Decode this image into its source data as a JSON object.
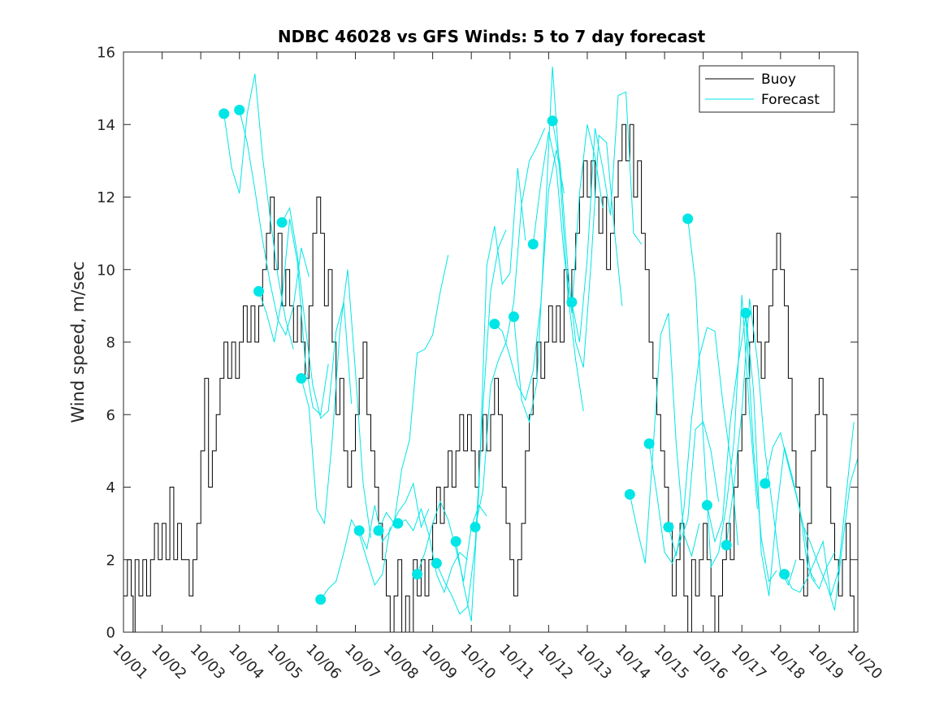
{
  "chart_data": {
    "type": "line",
    "title": "NDBC 46028 vs GFS Winds: 5 to 7 day forecast",
    "xlabel": "",
    "ylabel": "Wind speed, m/sec",
    "xlim": [
      0,
      19
    ],
    "ylim": [
      0,
      16
    ],
    "yticks": [
      0,
      2,
      4,
      6,
      8,
      10,
      12,
      14,
      16
    ],
    "xticks": [
      0,
      1,
      2,
      3,
      4,
      5,
      6,
      7,
      8,
      9,
      10,
      11,
      12,
      13,
      14,
      15,
      16,
      17,
      18,
      19
    ],
    "xtick_labels": [
      "10/01",
      "10/02",
      "10/03",
      "10/04",
      "10/05",
      "10/06",
      "10/07",
      "10/08",
      "10/09",
      "10/10",
      "10/11",
      "10/12",
      "10/13",
      "10/14",
      "10/15",
      "10/16",
      "10/17",
      "10/18",
      "10/19",
      "10/20"
    ],
    "legend": {
      "location": "top-right",
      "entries": [
        "Buoy",
        "Forecast"
      ]
    },
    "colors": {
      "buoy": "#000000",
      "forecast": "#00e5e5",
      "markers": "#00e5e5"
    },
    "buoy": {
      "name": "Buoy",
      "x": [
        0,
        0.1,
        0.2,
        0.25,
        0.3,
        0.4,
        0.5,
        0.6,
        0.7,
        0.8,
        0.9,
        1.0,
        1.1,
        1.2,
        1.3,
        1.4,
        1.5,
        1.6,
        1.7,
        1.8,
        1.9,
        2.0,
        2.1,
        2.2,
        2.3,
        2.4,
        2.5,
        2.6,
        2.7,
        2.8,
        2.9,
        3.0,
        3.1,
        3.2,
        3.3,
        3.4,
        3.5,
        3.6,
        3.7,
        3.8,
        3.9,
        4.0,
        4.1,
        4.2,
        4.3,
        4.4,
        4.5,
        4.6,
        4.7,
        4.8,
        4.9,
        5.0,
        5.1,
        5.2,
        5.3,
        5.4,
        5.5,
        5.6,
        5.7,
        5.8,
        5.9,
        6.0,
        6.1,
        6.2,
        6.3,
        6.4,
        6.5,
        6.6,
        6.7,
        6.8,
        6.9,
        7.0,
        7.1,
        7.2,
        7.3,
        7.4,
        7.5,
        7.6,
        7.7,
        7.8,
        7.9,
        8.0,
        8.1,
        8.2,
        8.3,
        8.4,
        8.5,
        8.6,
        8.7,
        8.8,
        8.9,
        9.0,
        9.1,
        9.2,
        9.3,
        9.4,
        9.5,
        9.6,
        9.7,
        9.8,
        9.9,
        10.0,
        10.1,
        10.2,
        10.3,
        10.4,
        10.5,
        10.6,
        10.7,
        10.8,
        10.9,
        11.0,
        11.1,
        11.2,
        11.3,
        11.4,
        11.5,
        11.6,
        11.7,
        11.8,
        11.9,
        12.0,
        12.1,
        12.2,
        12.3,
        12.4,
        12.5,
        12.6,
        12.7,
        12.8,
        12.9,
        13.0,
        13.1,
        13.2,
        13.3,
        13.4,
        13.5,
        13.6,
        13.7,
        13.8,
        13.9,
        14.0,
        14.1,
        14.2,
        14.3,
        14.4,
        14.5,
        14.6,
        14.7,
        14.8,
        14.9,
        15.0,
        15.1,
        15.2,
        15.3,
        15.4,
        15.5,
        15.6,
        15.7,
        15.8,
        15.9,
        16.0,
        16.1,
        16.2,
        16.3,
        16.4,
        16.5,
        16.6,
        16.7,
        16.8,
        16.9,
        17.0,
        17.1,
        17.2,
        17.3,
        17.4,
        17.5,
        17.6,
        17.7,
        17.8,
        17.9,
        18.0,
        18.1,
        18.2,
        18.3,
        18.4,
        18.5,
        18.6,
        18.7,
        18.8,
        18.9,
        19.0
      ],
      "values": [
        1,
        2,
        1,
        0,
        2,
        1,
        2,
        1,
        2,
        3,
        2,
        3,
        2,
        4,
        2,
        3,
        2,
        2,
        1,
        2,
        3,
        5,
        7,
        4,
        5,
        6,
        7,
        8,
        7,
        8,
        7,
        8,
        9,
        8,
        9,
        8,
        9,
        10,
        11,
        12,
        10,
        11,
        9,
        10,
        9,
        8,
        9,
        8,
        7,
        9,
        11,
        12,
        11,
        9,
        10,
        8,
        6,
        7,
        5,
        4,
        5,
        6,
        7,
        8,
        6,
        5,
        4,
        3,
        2,
        1,
        0,
        1,
        2,
        0,
        1,
        0,
        2,
        1,
        2,
        1,
        2,
        3,
        4,
        3,
        4,
        5,
        4,
        5,
        6,
        5,
        6,
        5,
        4,
        5,
        6,
        5,
        6,
        7,
        6,
        4,
        3,
        2,
        1,
        2,
        3,
        5,
        6,
        7,
        8,
        7,
        8,
        9,
        8,
        9,
        8,
        10,
        9,
        10,
        11,
        12,
        13,
        12,
        13,
        12,
        11,
        12,
        10,
        11,
        12,
        13,
        14,
        13,
        14,
        12,
        13,
        11,
        10,
        8,
        7,
        6,
        5,
        4,
        3,
        1,
        2,
        3,
        1,
        0,
        2,
        1,
        2,
        3,
        2,
        1,
        0,
        1,
        2,
        3,
        2,
        4,
        5,
        6,
        7,
        8,
        9,
        8,
        7,
        8,
        9,
        10,
        11,
        10,
        9,
        7,
        5,
        4,
        2,
        1,
        3,
        5,
        6,
        7,
        6,
        4,
        3,
        2,
        1,
        2,
        3,
        1,
        0,
        2
      ]
    },
    "forecast": {
      "name": "Forecast",
      "series": [
        {
          "x": [
            2.6,
            2.8,
            3.0,
            3.2,
            3.4,
            3.6,
            3.8,
            4.0,
            4.2,
            4.4
          ],
          "values": [
            14.3,
            12.8,
            12.1,
            14.3,
            15.4,
            13.1,
            11.4,
            9.8,
            8.6,
            7.8
          ]
        },
        {
          "x": [
            3.0,
            3.2,
            3.4,
            3.6,
            3.8,
            4.0,
            4.2,
            4.4,
            4.6,
            4.8
          ],
          "values": [
            14.4,
            13.5,
            12.2,
            10.8,
            9.6,
            8.6,
            8.2,
            9.0,
            10.6,
            9.8
          ]
        },
        {
          "x": [
            3.5,
            3.7,
            3.9,
            4.1,
            4.3,
            4.5,
            4.7,
            4.9,
            5.1,
            5.3
          ],
          "values": [
            9.4,
            8.8,
            8.0,
            9.2,
            11.4,
            10.2,
            7.5,
            6.2,
            6.0,
            7.4
          ]
        },
        {
          "x": [
            4.1,
            4.3,
            4.5,
            4.7,
            4.9,
            5.1,
            5.3,
            5.5,
            5.7,
            5.9
          ],
          "values": [
            11.3,
            11.7,
            10.4,
            8.5,
            6.8,
            5.9,
            6.1,
            8.3,
            9.1,
            6.3
          ]
        },
        {
          "x": [
            4.6,
            4.8,
            5.0,
            5.2,
            5.4,
            5.6,
            5.8,
            6.0,
            6.2,
            6.4
          ],
          "values": [
            7.0,
            6.2,
            3.4,
            3.0,
            5.3,
            8.3,
            10.0,
            7.2,
            4.1,
            2.6
          ]
        },
        {
          "x": [
            5.1,
            5.3,
            5.5,
            5.7,
            5.9,
            6.1,
            6.3,
            6.5,
            6.7,
            6.9
          ],
          "values": [
            0.9,
            1.2,
            1.4,
            2.2,
            3.1,
            2.7,
            2.0,
            1.3,
            1.6,
            2.9
          ]
        },
        {
          "x": [
            6.1,
            6.3,
            6.5,
            6.7,
            6.9,
            7.1,
            7.3,
            7.5,
            7.7,
            7.9
          ],
          "values": [
            2.8,
            2.3,
            3.5,
            2.5,
            2.8,
            3.3,
            3.6,
            4.1,
            2.9,
            3.4
          ]
        },
        {
          "x": [
            6.6,
            6.8,
            7.0,
            7.2,
            7.4,
            7.6,
            7.8,
            8.0,
            8.2,
            8.4
          ],
          "values": [
            2.8,
            3.3,
            3.0,
            4.5,
            5.3,
            7.7,
            7.8,
            8.2,
            9.4,
            10.4
          ]
        },
        {
          "x": [
            7.1,
            7.3,
            7.5,
            7.7,
            7.9,
            8.1,
            8.3,
            8.5,
            8.7,
            8.9
          ],
          "values": [
            3.0,
            3.1,
            2.8,
            3.4,
            2.7,
            1.6,
            1.1,
            1.8,
            2.2,
            2.0
          ]
        },
        {
          "x": [
            7.6,
            7.8,
            8.0,
            8.2,
            8.4,
            8.6,
            8.8,
            9.0,
            9.2,
            9.4
          ],
          "values": [
            1.6,
            2.2,
            3.0,
            3.6,
            3.1,
            2.3,
            1.4,
            2.9,
            3.5,
            3.2
          ]
        },
        {
          "x": [
            8.1,
            8.3,
            8.5,
            8.7,
            8.9,
            9.1,
            9.3,
            9.5,
            9.7,
            9.9
          ],
          "values": [
            1.9,
            1.4,
            1.0,
            0.5,
            0.7,
            2.4,
            6.2,
            9.4,
            10.6,
            11.1
          ]
        },
        {
          "x": [
            8.6,
            8.8,
            9.0,
            9.2,
            9.4,
            9.6,
            9.8,
            10.0,
            10.2,
            10.4
          ],
          "values": [
            2.5,
            1.3,
            0.3,
            4.0,
            10.1,
            11.2,
            9.6,
            9.9,
            12.8,
            10.8
          ]
        },
        {
          "x": [
            9.1,
            9.3,
            9.5,
            9.7,
            9.9,
            10.1,
            10.3,
            10.5,
            10.7,
            10.9
          ],
          "values": [
            2.9,
            3.9,
            6.8,
            7.5,
            8.0,
            9.1,
            11.8,
            13.0,
            13.4,
            13.9
          ]
        },
        {
          "x": [
            9.6,
            9.8,
            10.0,
            10.2,
            10.4,
            10.6,
            10.8,
            11.0,
            11.2,
            11.4
          ],
          "values": [
            8.5,
            8.3,
            7.6,
            6.8,
            6.4,
            7.2,
            9.1,
            12.2,
            13.3,
            12.1
          ]
        },
        {
          "x": [
            10.1,
            10.3,
            10.5,
            10.7,
            10.9,
            11.1,
            11.3,
            11.5,
            11.7,
            11.9
          ],
          "values": [
            8.7,
            6.4,
            5.8,
            6.9,
            11.1,
            15.6,
            12.5,
            9.3,
            7.5,
            6.1
          ]
        },
        {
          "x": [
            10.6,
            10.8,
            11.0,
            11.2,
            11.4,
            11.6,
            11.8,
            12.0,
            12.2,
            12.4
          ],
          "values": [
            10.7,
            12.4,
            13.8,
            12.8,
            10.4,
            8.8,
            12.1,
            14.0,
            13.1,
            11.7
          ]
        },
        {
          "x": [
            11.1,
            11.3,
            11.5,
            11.7,
            11.9,
            12.1,
            12.3,
            12.5,
            12.7,
            12.9
          ],
          "values": [
            14.1,
            12.9,
            10.0,
            8.0,
            7.3,
            10.2,
            13.7,
            13.5,
            11.1,
            9.0
          ]
        },
        {
          "x": [
            11.6,
            11.8,
            12.0,
            12.2,
            12.4,
            12.6,
            12.8,
            13.0,
            13.2,
            13.4
          ],
          "values": [
            9.1,
            8.0,
            10.3,
            13.9,
            12.8,
            11.5,
            14.8,
            14.9,
            11.0,
            10.7
          ]
        },
        {
          "x": [
            13.1,
            13.3,
            13.5,
            13.7,
            13.9,
            14.1,
            14.3,
            14.5,
            14.7,
            14.9
          ],
          "values": [
            3.8,
            2.8,
            1.9,
            5.0,
            8.2,
            8.8,
            5.2,
            2.7,
            2.1,
            3.0
          ]
        },
        {
          "x": [
            13.6,
            13.8,
            14.0,
            14.2,
            14.4,
            14.6,
            14.8,
            15.0,
            15.2,
            15.4
          ],
          "values": [
            5.2,
            3.8,
            2.2,
            1.9,
            2.5,
            3.1,
            5.6,
            5.8,
            5.0,
            3.6
          ]
        },
        {
          "x": [
            14.1,
            14.3,
            14.5,
            14.7,
            14.9,
            15.1,
            15.3,
            15.5,
            15.7,
            15.9
          ],
          "values": [
            2.9,
            2.1,
            3.4,
            5.9,
            7.6,
            8.4,
            8.3,
            6.4,
            4.8,
            2.4
          ]
        },
        {
          "x": [
            14.6,
            14.8,
            15.0,
            15.2,
            15.4,
            15.6,
            15.8,
            16.0,
            16.2,
            16.4
          ],
          "values": [
            11.4,
            9.6,
            5.4,
            1.8,
            2.2,
            3.5,
            5.3,
            9.3,
            6.0,
            3.4
          ]
        },
        {
          "x": [
            15.1,
            15.3,
            15.5,
            15.7,
            15.9,
            16.1,
            16.3,
            16.5,
            16.7,
            16.9
          ],
          "values": [
            3.5,
            2.5,
            3.1,
            5.8,
            7.4,
            8.7,
            5.1,
            2.6,
            1.4,
            1.7
          ]
        },
        {
          "x": [
            15.6,
            15.8,
            16.0,
            16.2,
            16.4,
            16.6,
            16.8,
            17.0,
            17.2,
            17.4
          ],
          "values": [
            2.4,
            4.1,
            6.1,
            9.2,
            7.5,
            5.0,
            3.4,
            1.7,
            1.3,
            2.0
          ]
        },
        {
          "x": [
            16.1,
            16.3,
            16.5,
            16.7,
            16.9,
            17.1,
            17.3,
            17.5,
            17.7,
            17.9
          ],
          "values": [
            8.8,
            6.7,
            2.2,
            1.0,
            3.3,
            5.1,
            4.3,
            3.4,
            1.8,
            1.4
          ]
        },
        {
          "x": [
            16.6,
            16.8,
            17.0,
            17.2,
            17.4,
            17.6,
            17.8,
            18.0,
            18.2,
            18.4
          ],
          "values": [
            4.1,
            5.1,
            5.5,
            4.6,
            3.8,
            2.9,
            1.5,
            1.2,
            1.8,
            2.2
          ]
        },
        {
          "x": [
            17.1,
            17.3,
            17.5,
            17.7,
            17.9,
            18.1,
            18.3,
            18.5,
            18.7,
            18.9
          ],
          "values": [
            1.6,
            1.2,
            1.1,
            1.5,
            2.0,
            2.5,
            1.0,
            1.7,
            3.8,
            5.8
          ]
        },
        {
          "x": [
            17.6,
            17.8,
            18.0,
            18.2,
            18.4,
            18.6,
            18.8,
            19.0
          ],
          "values": [
            2.9,
            2.4,
            1.8,
            1.3,
            0.6,
            2.4,
            4.1,
            4.8
          ]
        }
      ]
    },
    "markers": {
      "x": [
        2.6,
        3.0,
        3.5,
        4.1,
        4.6,
        5.1,
        6.1,
        6.6,
        7.1,
        7.6,
        8.1,
        8.6,
        9.1,
        9.6,
        10.1,
        10.6,
        11.1,
        11.6,
        13.1,
        13.6,
        14.1,
        14.6,
        15.1,
        15.6,
        16.1,
        16.6,
        17.1
      ],
      "values": [
        14.3,
        14.4,
        9.4,
        11.3,
        7.0,
        0.9,
        2.8,
        2.8,
        3.0,
        1.6,
        1.9,
        2.5,
        2.9,
        8.5,
        8.7,
        10.7,
        14.1,
        9.1,
        3.8,
        5.2,
        2.9,
        11.4,
        3.5,
        2.4,
        8.8,
        4.1,
        1.6
      ]
    }
  }
}
